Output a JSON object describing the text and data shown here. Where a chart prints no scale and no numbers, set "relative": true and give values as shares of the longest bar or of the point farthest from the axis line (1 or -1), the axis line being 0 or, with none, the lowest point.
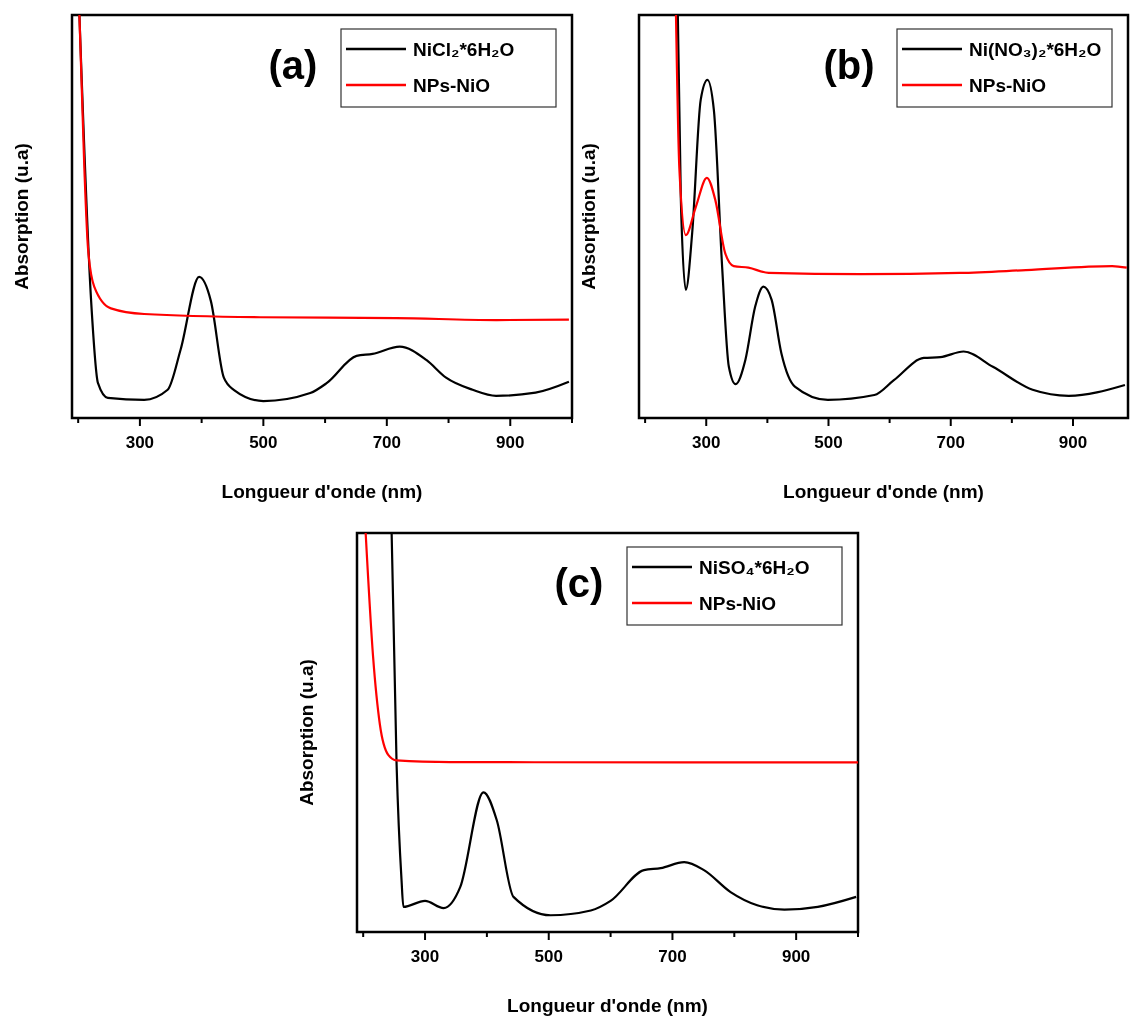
{
  "chart_data": [
    {
      "type": "line",
      "title": "(a)",
      "xlabel": "Longueur d'onde (nm)",
      "ylabel": "Absorption (u.a)",
      "relative": true,
      "legend": "top right",
      "xlim": [
        190,
        1000
      ],
      "xticks": [
        {
          "value": 200,
          "label": null
        },
        300,
        {
          "value": 400,
          "label": null
        },
        500,
        {
          "value": 600,
          "label": null
        },
        700,
        {
          "value": 800,
          "label": null
        },
        900,
        {
          "value": 1000,
          "label": null
        }
      ],
      "series": [
        {
          "name": "NiCl₂*6H₂O",
          "color": "#000000",
          "x": [
            202,
            221,
            232,
            248,
            307,
            345,
            366,
            396,
            415,
            436,
            452,
            500,
            576,
            603,
            651,
            677,
            721,
            764,
            796,
            839,
            877,
            941,
            995
          ],
          "values": [
            1.0,
            0.29,
            0.087,
            0.05,
            0.045,
            0.07,
            0.17,
            0.35,
            0.29,
            0.1,
            0.07,
            0.042,
            0.062,
            0.087,
            0.154,
            0.159,
            0.177,
            0.144,
            0.1,
            0.07,
            0.055,
            0.063,
            0.09
          ]
        },
        {
          "name": "NPs-NiO",
          "color": "#ff0000",
          "x": [
            202,
            210,
            216,
            226,
            253,
            307,
            495,
            715,
            877,
            995
          ],
          "values": [
            1.0,
            0.62,
            0.42,
            0.326,
            0.272,
            0.258,
            0.25,
            0.248,
            0.243,
            0.244
          ]
        }
      ]
    },
    {
      "type": "line",
      "title": "(b)",
      "xlabel": "Longueur d'onde (nm)",
      "ylabel": "Absorption (u.a)",
      "relative": true,
      "legend": "top right",
      "xlim": [
        190,
        990
      ],
      "xticks": [
        {
          "value": 200,
          "label": null
        },
        300,
        {
          "value": 400,
          "label": null
        },
        500,
        {
          "value": 600,
          "label": null
        },
        700,
        {
          "value": 800,
          "label": null
        },
        900
      ],
      "series": [
        {
          "name": "Ni(NO₃)₂*6H₂O",
          "color": "#000000",
          "x": [
            253.5,
            258.5,
            266.6,
            277,
            291,
            302,
            312.5,
            326,
            337,
            348,
            364,
            380,
            393.5,
            407,
            423,
            445,
            499,
            575,
            607,
            656,
            683,
            721,
            769,
            834,
            893,
            985
          ],
          "values": [
            1.0,
            0.54,
            0.318,
            0.459,
            0.79,
            0.839,
            0.764,
            0.375,
            0.127,
            0.084,
            0.144,
            0.276,
            0.326,
            0.293,
            0.16,
            0.078,
            0.045,
            0.057,
            0.094,
            0.149,
            0.151,
            0.165,
            0.127,
            0.07,
            0.055,
            0.082
          ]
        },
        {
          "name": "NPs-NiO",
          "color": "#ff0000",
          "x": [
            250.5,
            256,
            266.6,
            283,
            301,
            315,
            331,
            345,
            369,
            402,
            553,
            715,
            823,
            964,
            988
          ],
          "values": [
            1.0,
            0.62,
            0.454,
            0.524,
            0.596,
            0.54,
            0.409,
            0.377,
            0.373,
            0.36,
            0.357,
            0.36,
            0.367,
            0.377,
            0.373
          ]
        }
      ]
    },
    {
      "type": "line",
      "title": "(c)",
      "xlabel": "Longueur d'onde (nm)",
      "ylabel": "Absorption (u.a)",
      "relative": true,
      "legend": "top right",
      "xlim": [
        190,
        1000
      ],
      "xticks": [
        {
          "value": 200,
          "label": null
        },
        300,
        {
          "value": 400,
          "label": null
        },
        500,
        {
          "value": 600,
          "label": null
        },
        700,
        {
          "value": 800,
          "label": null
        },
        900,
        {
          "value": 1000,
          "label": null
        }
      ],
      "series": [
        {
          "name": "NiSO₄*6H₂O",
          "color": "#000000",
          "x": [
            246,
            254,
            262,
            265,
            300,
            330,
            357,
            394.5,
            416,
            443,
            503,
            568,
            600,
            654,
            681,
            719,
            751,
            794,
            837,
            881,
            935,
            997
          ],
          "values": [
            1.0,
            0.42,
            0.13,
            0.063,
            0.078,
            0.06,
            0.113,
            0.35,
            0.28,
            0.088,
            0.042,
            0.054,
            0.078,
            0.155,
            0.16,
            0.175,
            0.155,
            0.1,
            0.067,
            0.056,
            0.063,
            0.088
          ]
        },
        {
          "name": "NPs-NiO",
          "color": "#ff0000",
          "x": [
            204,
            216,
            227,
            240.5,
            254,
            340,
            719,
            1000
          ],
          "values": [
            1.0,
            0.69,
            0.52,
            0.444,
            0.43,
            0.426,
            0.425,
            0.425
          ]
        }
      ]
    }
  ]
}
